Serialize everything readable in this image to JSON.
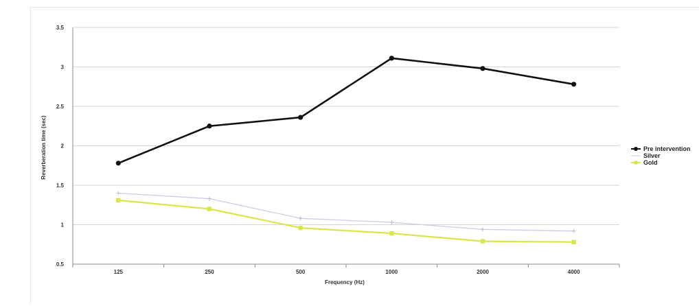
{
  "chart_data": {
    "type": "line",
    "title": "",
    "xlabel": "Frequency (Hz)",
    "ylabel": "Reverberation time (sec)",
    "categories": [
      "125",
      "250",
      "500",
      "1000",
      "2000",
      "4000"
    ],
    "ylim": [
      0.5,
      3.5
    ],
    "yticks": [
      "0.5",
      "1",
      "1.5",
      "2",
      "2.5",
      "3",
      "3.5"
    ],
    "grid": true,
    "legend_position": "right",
    "series": [
      {
        "name": "Pre intervention",
        "color": "#111111",
        "marker": "circle",
        "values": [
          1.78,
          2.25,
          2.36,
          3.11,
          2.98,
          2.78
        ]
      },
      {
        "name": "Silver",
        "color": "#c9cfe4",
        "marker": "cross",
        "values": [
          1.4,
          1.33,
          1.08,
          1.03,
          0.94,
          0.92
        ]
      },
      {
        "name": "Gold",
        "color": "#d9e64a",
        "marker": "square",
        "values": [
          1.31,
          1.2,
          0.96,
          0.89,
          0.79,
          0.78
        ]
      }
    ]
  }
}
